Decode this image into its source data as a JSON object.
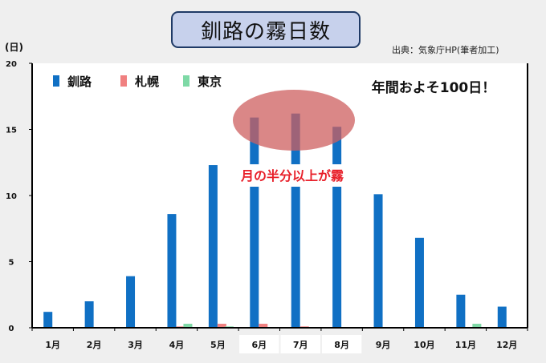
{
  "title": "釧路の霧日数",
  "source": "出典：気象庁HP(筆者加工)",
  "chart_data": {
    "type": "bar",
    "ylabel": "(日)",
    "ylim": [
      0,
      20
    ],
    "yticks": [
      0,
      5,
      10,
      15,
      20
    ],
    "categories": [
      "1月",
      "2月",
      "3月",
      "4月",
      "5月",
      "6月",
      "7月",
      "8月",
      "9月",
      "10月",
      "11月",
      "12月"
    ],
    "series": [
      {
        "name": "釧路",
        "color": "#1070c4",
        "values": [
          1.2,
          2.0,
          3.9,
          8.6,
          12.3,
          15.9,
          16.2,
          15.2,
          10.1,
          6.8,
          2.5,
          1.6
        ]
      },
      {
        "name": "札幌",
        "color": "#f08080",
        "values": [
          0,
          0,
          0,
          0.1,
          0.3,
          0.3,
          0.1,
          0,
          0,
          0,
          0,
          0
        ]
      },
      {
        "name": "東京",
        "color": "#7ed9a6",
        "values": [
          0,
          0,
          0,
          0.3,
          0.1,
          0,
          0,
          0,
          0,
          0,
          0.3,
          0
        ]
      }
    ],
    "highlighted_categories": [
      "6月",
      "7月",
      "8月"
    ],
    "annotations": {
      "callout": "年間およそ100日！",
      "half_month": "月の半分以上が霧"
    },
    "grid": false,
    "legend": "top-left"
  }
}
